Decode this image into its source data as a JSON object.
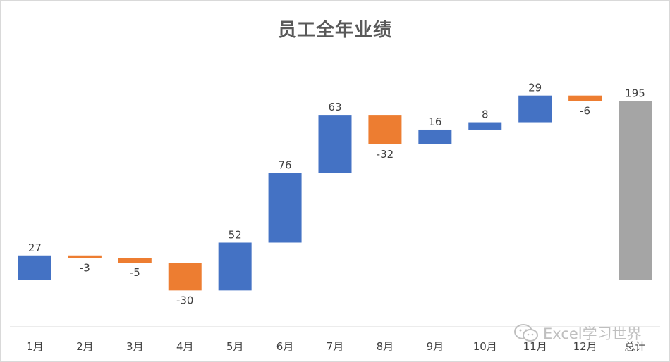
{
  "chart_data": {
    "type": "waterfall",
    "title": "员工全年业绩",
    "categories": [
      "1月",
      "2月",
      "3月",
      "4月",
      "5月",
      "6月",
      "7月",
      "8月",
      "9月",
      "10月",
      "11月",
      "12月",
      "总计"
    ],
    "values": [
      27,
      -3,
      -5,
      -30,
      52,
      76,
      63,
      -32,
      16,
      8,
      29,
      -6,
      195
    ],
    "total_index": 12,
    "ylim": [
      -14,
      238
    ],
    "grid": false,
    "legend": "none"
  },
  "colors": {
    "increase": "#4472c4",
    "decrease": "#ed7d31",
    "total": "#a5a5a5",
    "axis": "#d9d9d9",
    "text": "#404040",
    "title": "#595959"
  },
  "watermark": {
    "icon": "wechat-icon",
    "text": "Excel学习世界"
  }
}
